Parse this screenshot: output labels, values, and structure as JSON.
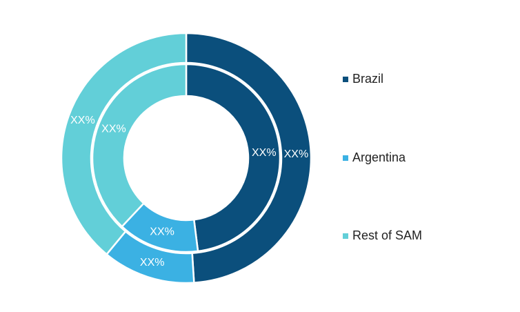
{
  "chart_data": {
    "type": "donut",
    "categories": [
      "Brazil",
      "Argentina",
      "Rest of SAM"
    ],
    "colors": [
      "#0b4f7c",
      "#3bb1e3",
      "#62cfd8"
    ],
    "series": [
      {
        "values": [
          49,
          12,
          39
        ],
        "value_labels": [
          "XX%",
          "XX%",
          "XX%"
        ]
      },
      {
        "values": [
          48,
          14,
          38
        ],
        "value_labels": [
          "XX%",
          "XX%",
          "XX%"
        ]
      }
    ],
    "legend": "right"
  }
}
